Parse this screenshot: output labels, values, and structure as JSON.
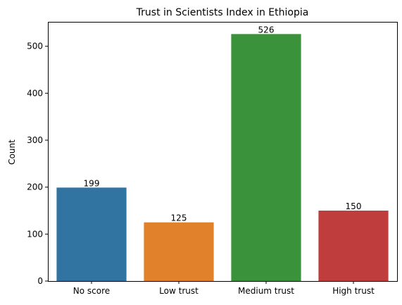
{
  "chart_data": {
    "type": "bar",
    "title": "Trust in Scientists Index in Ethiopia",
    "xlabel": "",
    "ylabel": "Count",
    "categories": [
      "No score",
      "Low trust",
      "Medium trust",
      "High trust"
    ],
    "values": [
      199,
      125,
      526,
      150
    ],
    "data_labels": [
      "199",
      "125",
      "526",
      "150"
    ],
    "colors": [
      "#3274a1",
      "#e1812c",
      "#3a923a",
      "#c03d3e"
    ],
    "ylim": [
      0,
      552
    ],
    "yticks": [
      0,
      100,
      200,
      300,
      400,
      500
    ],
    "grid": false,
    "legend": "none"
  }
}
